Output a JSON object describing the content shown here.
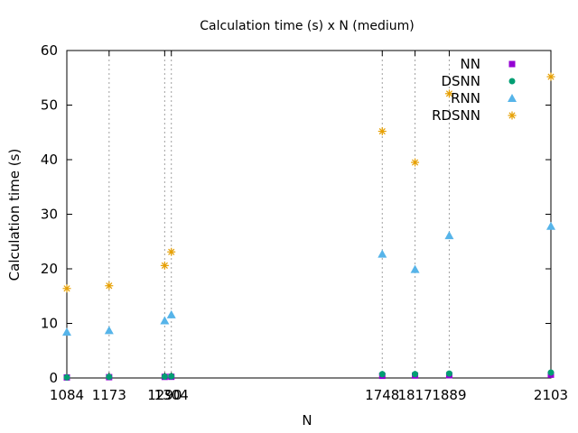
{
  "chart_data": {
    "type": "scatter",
    "title": "Calculation time (s) x N (medium)",
    "xlabel": "N",
    "ylabel": "Calculation time (s)",
    "xlim": [
      1084,
      2103
    ],
    "ylim": [
      0,
      60
    ],
    "x_ticks": [
      1084,
      1173,
      1290,
      1304,
      1748,
      1817,
      1889,
      2103
    ],
    "x_tick_labels": [
      "1084",
      "1173",
      "1290",
      "1304",
      "1748",
      "1817",
      "1889",
      "2103"
    ],
    "y_ticks": [
      0,
      10,
      20,
      30,
      40,
      50,
      60
    ],
    "y_tick_labels": [
      "0",
      "10",
      "20",
      "30",
      "40",
      "50",
      "60"
    ],
    "grid": true,
    "legend_position": "top-right",
    "x": [
      1084,
      1173,
      1290,
      1304,
      1748,
      1817,
      1889,
      2103
    ],
    "series": [
      {
        "name": "NN",
        "color": "#9400d3",
        "marker": "square",
        "values": [
          0.1,
          0.15,
          0.2,
          0.22,
          0.4,
          0.45,
          0.5,
          0.6
        ]
      },
      {
        "name": "DSNN",
        "color": "#009e73",
        "marker": "circle",
        "values": [
          0.1,
          0.2,
          0.25,
          0.3,
          0.7,
          0.7,
          0.8,
          1.0
        ]
      },
      {
        "name": "RNN",
        "color": "#56b4e9",
        "marker": "triangle",
        "values": [
          8.4,
          8.7,
          10.5,
          11.6,
          22.7,
          19.9,
          26.1,
          27.8
        ]
      },
      {
        "name": "RDSNN",
        "color": "#e69f00",
        "marker": "star",
        "values": [
          16.4,
          16.9,
          20.6,
          23.1,
          45.2,
          39.5,
          52.1,
          55.2
        ]
      }
    ]
  }
}
